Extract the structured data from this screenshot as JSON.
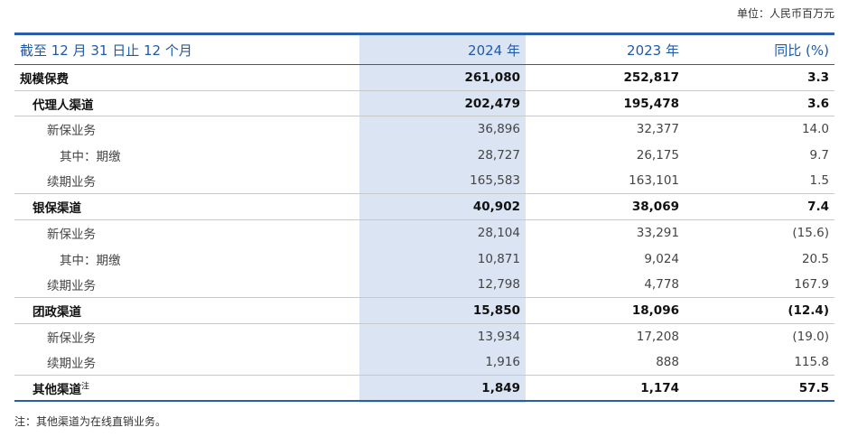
{
  "unit_label": "单位：人民币百万元",
  "table": {
    "headers": {
      "label": "截至 12 月 31 日止 12 个月",
      "col2024": "2024 年",
      "col2023": "2023 年",
      "yoy": "同比 (%)"
    },
    "rows": [
      {
        "label": "规模保费",
        "v2024": "261,080",
        "v2023": "252,817",
        "yoy": "3.3"
      },
      {
        "label": "代理人渠道",
        "v2024": "202,479",
        "v2023": "195,478",
        "yoy": "3.6"
      },
      {
        "label": "新保业务",
        "v2024": "36,896",
        "v2023": "32,377",
        "yoy": "14.0"
      },
      {
        "label": "其中：期缴",
        "v2024": "28,727",
        "v2023": "26,175",
        "yoy": "9.7"
      },
      {
        "label": "续期业务",
        "v2024": "165,583",
        "v2023": "163,101",
        "yoy": "1.5"
      },
      {
        "label": "银保渠道",
        "v2024": "40,902",
        "v2023": "38,069",
        "yoy": "7.4"
      },
      {
        "label": "新保业务",
        "v2024": "28,104",
        "v2023": "33,291",
        "yoy": "(15.6)"
      },
      {
        "label": "其中：期缴",
        "v2024": "10,871",
        "v2023": "9,024",
        "yoy": "20.5"
      },
      {
        "label": "续期业务",
        "v2024": "12,798",
        "v2023": "4,778",
        "yoy": "167.9"
      },
      {
        "label": "团政渠道",
        "v2024": "15,850",
        "v2023": "18,096",
        "yoy": "(12.4)"
      },
      {
        "label": "新保业务",
        "v2024": "13,934",
        "v2023": "17,208",
        "yoy": "(19.0)"
      },
      {
        "label": "续期业务",
        "v2024": "1,916",
        "v2023": "888",
        "yoy": "115.8"
      },
      {
        "label": "其他渠道",
        "label_sup": "注",
        "v2024": "1,849",
        "v2023": "1,174",
        "yoy": "57.5"
      }
    ]
  },
  "note": "注：其他渠道为在线直销业务。"
}
